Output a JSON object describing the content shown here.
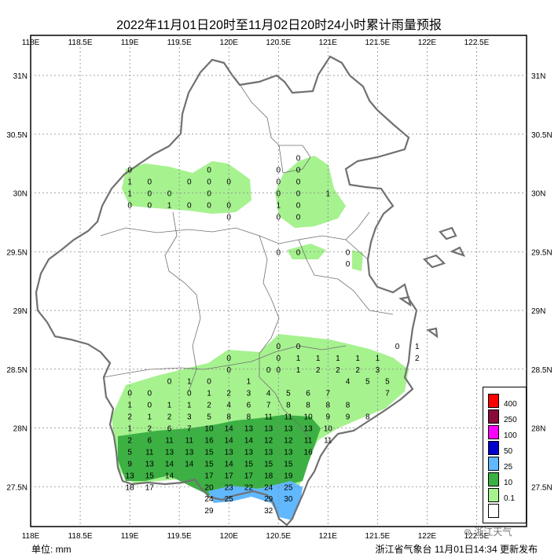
{
  "title": "2022年11月01日20时至11月02日20时24小时累计雨量预报",
  "lon_labels": [
    "118E",
    "118.5E",
    "119E",
    "119.5E",
    "120E",
    "120.5E",
    "121E",
    "121.5E",
    "122E",
    "122.5E"
  ],
  "lat_labels": [
    "31N",
    "30.5N",
    "30N",
    "29.5N",
    "29N",
    "28.5N",
    "28N",
    "27.5N"
  ],
  "legend": [
    {
      "label": "400",
      "color": "#ff0000"
    },
    {
      "label": "250",
      "color": "#8b0a3c"
    },
    {
      "label": "100",
      "color": "#ff00ff"
    },
    {
      "label": "50",
      "color": "#0000cc"
    },
    {
      "label": "25",
      "color": "#61b8ff"
    },
    {
      "label": "10",
      "color": "#3cb043"
    },
    {
      "label": "0.1",
      "color": "#a6f28f"
    },
    {
      "label": "",
      "color": "#ffffff"
    }
  ],
  "unit": "单位: mm",
  "footer": "浙江省气象台 11月01日14:34 更新发布",
  "watermark": "浙江天气",
  "values": [
    {
      "lon": 119.0,
      "lat": 30.2,
      "v": "0"
    },
    {
      "lon": 119.0,
      "lat": 30.1,
      "v": "1"
    },
    {
      "lon": 119.0,
      "lat": 30.0,
      "v": "1"
    },
    {
      "lon": 119.0,
      "lat": 29.9,
      "v": "0"
    },
    {
      "lon": 119.2,
      "lat": 30.1,
      "v": "0"
    },
    {
      "lon": 119.2,
      "lat": 30.0,
      "v": "0"
    },
    {
      "lon": 119.2,
      "lat": 29.9,
      "v": "0"
    },
    {
      "lon": 119.4,
      "lat": 30.0,
      "v": "0"
    },
    {
      "lon": 119.4,
      "lat": 29.9,
      "v": "1"
    },
    {
      "lon": 119.6,
      "lat": 30.1,
      "v": "0"
    },
    {
      "lon": 119.6,
      "lat": 29.9,
      "v": "0"
    },
    {
      "lon": 119.8,
      "lat": 30.2,
      "v": "0"
    },
    {
      "lon": 119.8,
      "lat": 30.1,
      "v": "0"
    },
    {
      "lon": 119.8,
      "lat": 30.0,
      "v": "0"
    },
    {
      "lon": 119.8,
      "lat": 29.9,
      "v": "0"
    },
    {
      "lon": 120.0,
      "lat": 30.1,
      "v": "0"
    },
    {
      "lon": 120.0,
      "lat": 29.9,
      "v": "0"
    },
    {
      "lon": 120.0,
      "lat": 29.8,
      "v": "0"
    },
    {
      "lon": 120.5,
      "lat": 30.2,
      "v": "0"
    },
    {
      "lon": 120.5,
      "lat": 30.1,
      "v": "0"
    },
    {
      "lon": 120.5,
      "lat": 30.0,
      "v": "0"
    },
    {
      "lon": 120.5,
      "lat": 29.9,
      "v": "1"
    },
    {
      "lon": 120.5,
      "lat": 29.8,
      "v": "0"
    },
    {
      "lon": 120.7,
      "lat": 30.3,
      "v": "0"
    },
    {
      "lon": 120.7,
      "lat": 30.2,
      "v": "0"
    },
    {
      "lon": 120.7,
      "lat": 30.1,
      "v": "0"
    },
    {
      "lon": 120.7,
      "lat": 30.0,
      "v": "0"
    },
    {
      "lon": 120.7,
      "lat": 29.9,
      "v": "0"
    },
    {
      "lon": 120.7,
      "lat": 29.8,
      "v": "0"
    },
    {
      "lon": 121.0,
      "lat": 30.0,
      "v": "1"
    },
    {
      "lon": 120.5,
      "lat": 29.5,
      "v": "0"
    },
    {
      "lon": 120.7,
      "lat": 29.5,
      "v": "0"
    },
    {
      "lon": 121.2,
      "lat": 29.5,
      "v": "0"
    },
    {
      "lon": 121.2,
      "lat": 29.4,
      "v": "0"
    },
    {
      "lon": 120.5,
      "lat": 28.7,
      "v": "0"
    },
    {
      "lon": 120.7,
      "lat": 28.7,
      "v": "0"
    },
    {
      "lon": 120.0,
      "lat": 28.6,
      "v": "0"
    },
    {
      "lon": 120.0,
      "lat": 28.5,
      "v": "0"
    },
    {
      "lon": 120.4,
      "lat": 28.5,
      "v": "0"
    },
    {
      "lon": 120.5,
      "lat": 28.6,
      "v": "0"
    },
    {
      "lon": 120.5,
      "lat": 28.5,
      "v": "0"
    },
    {
      "lon": 120.7,
      "lat": 28.6,
      "v": "1"
    },
    {
      "lon": 120.7,
      "lat": 28.5,
      "v": "1"
    },
    {
      "lon": 120.9,
      "lat": 28.6,
      "v": "1"
    },
    {
      "lon": 120.9,
      "lat": 28.5,
      "v": "2"
    },
    {
      "lon": 121.1,
      "lat": 28.6,
      "v": "1"
    },
    {
      "lon": 121.1,
      "lat": 28.5,
      "v": "2"
    },
    {
      "lon": 121.3,
      "lat": 28.6,
      "v": "1"
    },
    {
      "lon": 121.3,
      "lat": 28.5,
      "v": "2"
    },
    {
      "lon": 121.5,
      "lat": 28.6,
      "v": "1"
    },
    {
      "lon": 121.5,
      "lat": 28.5,
      "v": "3"
    },
    {
      "lon": 121.7,
      "lat": 28.7,
      "v": "0"
    },
    {
      "lon": 121.9,
      "lat": 28.7,
      "v": "1"
    },
    {
      "lon": 121.9,
      "lat": 28.6,
      "v": "2"
    },
    {
      "lon": 119.4,
      "lat": 28.4,
      "v": "0"
    },
    {
      "lon": 119.6,
      "lat": 28.4,
      "v": "1"
    },
    {
      "lon": 119.8,
      "lat": 28.4,
      "v": "0"
    },
    {
      "lon": 120.2,
      "lat": 28.4,
      "v": "1"
    },
    {
      "lon": 119.0,
      "lat": 28.3,
      "v": "0"
    },
    {
      "lon": 119.2,
      "lat": 28.3,
      "v": "0"
    },
    {
      "lon": 119.6,
      "lat": 28.3,
      "v": "0"
    },
    {
      "lon": 119.8,
      "lat": 28.3,
      "v": "1"
    },
    {
      "lon": 120.0,
      "lat": 28.3,
      "v": "2"
    },
    {
      "lon": 120.2,
      "lat": 28.3,
      "v": "3"
    },
    {
      "lon": 120.4,
      "lat": 28.3,
      "v": "4"
    },
    {
      "lon": 120.6,
      "lat": 28.3,
      "v": "5"
    },
    {
      "lon": 120.8,
      "lat": 28.3,
      "v": "6"
    },
    {
      "lon": 121.0,
      "lat": 28.3,
      "v": "7"
    },
    {
      "lon": 121.2,
      "lat": 28.4,
      "v": "4"
    },
    {
      "lon": 121.4,
      "lat": 28.4,
      "v": "5"
    },
    {
      "lon": 121.6,
      "lat": 28.4,
      "v": "5"
    },
    {
      "lon": 121.6,
      "lat": 28.3,
      "v": "7"
    },
    {
      "lon": 119.0,
      "lat": 28.2,
      "v": "1"
    },
    {
      "lon": 119.2,
      "lat": 28.2,
      "v": "0"
    },
    {
      "lon": 119.4,
      "lat": 28.2,
      "v": "1"
    },
    {
      "lon": 119.6,
      "lat": 28.2,
      "v": "1"
    },
    {
      "lon": 119.8,
      "lat": 28.2,
      "v": "2"
    },
    {
      "lon": 120.0,
      "lat": 28.2,
      "v": "4"
    },
    {
      "lon": 120.2,
      "lat": 28.2,
      "v": "6"
    },
    {
      "lon": 120.4,
      "lat": 28.2,
      "v": "7"
    },
    {
      "lon": 120.6,
      "lat": 28.2,
      "v": "8"
    },
    {
      "lon": 120.8,
      "lat": 28.2,
      "v": "8"
    },
    {
      "lon": 121.0,
      "lat": 28.2,
      "v": "8"
    },
    {
      "lon": 121.2,
      "lat": 28.2,
      "v": "8"
    },
    {
      "lon": 119.0,
      "lat": 28.1,
      "v": "2"
    },
    {
      "lon": 119.2,
      "lat": 28.1,
      "v": "1"
    },
    {
      "lon": 119.4,
      "lat": 28.1,
      "v": "2"
    },
    {
      "lon": 119.6,
      "lat": 28.1,
      "v": "3"
    },
    {
      "lon": 119.8,
      "lat": 28.1,
      "v": "5"
    },
    {
      "lon": 120.0,
      "lat": 28.1,
      "v": "8"
    },
    {
      "lon": 120.2,
      "lat": 28.1,
      "v": "8"
    },
    {
      "lon": 120.4,
      "lat": 28.1,
      "v": "11"
    },
    {
      "lon": 120.6,
      "lat": 28.1,
      "v": "11"
    },
    {
      "lon": 120.8,
      "lat": 28.1,
      "v": "10"
    },
    {
      "lon": 121.0,
      "lat": 28.1,
      "v": "9"
    },
    {
      "lon": 121.2,
      "lat": 28.1,
      "v": "9"
    },
    {
      "lon": 121.4,
      "lat": 28.1,
      "v": "8"
    },
    {
      "lon": 119.0,
      "lat": 28.0,
      "v": "1"
    },
    {
      "lon": 119.2,
      "lat": 28.0,
      "v": "2"
    },
    {
      "lon": 119.4,
      "lat": 28.0,
      "v": "6"
    },
    {
      "lon": 119.6,
      "lat": 28.0,
      "v": "7"
    },
    {
      "lon": 119.8,
      "lat": 28.0,
      "v": "10"
    },
    {
      "lon": 120.0,
      "lat": 28.0,
      "v": "14"
    },
    {
      "lon": 120.2,
      "lat": 28.0,
      "v": "13"
    },
    {
      "lon": 120.4,
      "lat": 28.0,
      "v": "13"
    },
    {
      "lon": 120.6,
      "lat": 28.0,
      "v": "13"
    },
    {
      "lon": 120.8,
      "lat": 28.0,
      "v": "13"
    },
    {
      "lon": 121.0,
      "lat": 28.0,
      "v": "10"
    },
    {
      "lon": 119.0,
      "lat": 27.9,
      "v": "2"
    },
    {
      "lon": 119.2,
      "lat": 27.9,
      "v": "6"
    },
    {
      "lon": 119.4,
      "lat": 27.9,
      "v": "11"
    },
    {
      "lon": 119.6,
      "lat": 27.9,
      "v": "11"
    },
    {
      "lon": 119.8,
      "lat": 27.9,
      "v": "16"
    },
    {
      "lon": 120.0,
      "lat": 27.9,
      "v": "14"
    },
    {
      "lon": 120.2,
      "lat": 27.9,
      "v": "14"
    },
    {
      "lon": 120.4,
      "lat": 27.9,
      "v": "12"
    },
    {
      "lon": 120.6,
      "lat": 27.9,
      "v": "12"
    },
    {
      "lon": 120.8,
      "lat": 27.9,
      "v": "11"
    },
    {
      "lon": 121.0,
      "lat": 27.9,
      "v": "11"
    },
    {
      "lon": 119.0,
      "lat": 27.8,
      "v": "5"
    },
    {
      "lon": 119.2,
      "lat": 27.8,
      "v": "11"
    },
    {
      "lon": 119.4,
      "lat": 27.8,
      "v": "13"
    },
    {
      "lon": 119.6,
      "lat": 27.8,
      "v": "13"
    },
    {
      "lon": 119.8,
      "lat": 27.8,
      "v": "15"
    },
    {
      "lon": 120.0,
      "lat": 27.8,
      "v": "13"
    },
    {
      "lon": 120.2,
      "lat": 27.8,
      "v": "13"
    },
    {
      "lon": 120.4,
      "lat": 27.8,
      "v": "13"
    },
    {
      "lon": 120.6,
      "lat": 27.8,
      "v": "13"
    },
    {
      "lon": 120.8,
      "lat": 27.8,
      "v": "16"
    },
    {
      "lon": 119.0,
      "lat": 27.7,
      "v": "9"
    },
    {
      "lon": 119.2,
      "lat": 27.7,
      "v": "13"
    },
    {
      "lon": 119.4,
      "lat": 27.7,
      "v": "14"
    },
    {
      "lon": 119.6,
      "lat": 27.7,
      "v": "14"
    },
    {
      "lon": 119.8,
      "lat": 27.7,
      "v": "15"
    },
    {
      "lon": 120.0,
      "lat": 27.7,
      "v": "14"
    },
    {
      "lon": 120.2,
      "lat": 27.7,
      "v": "15"
    },
    {
      "lon": 120.4,
      "lat": 27.7,
      "v": "15"
    },
    {
      "lon": 120.6,
      "lat": 27.7,
      "v": "15"
    },
    {
      "lon": 119.0,
      "lat": 27.6,
      "v": "13"
    },
    {
      "lon": 119.2,
      "lat": 27.6,
      "v": "15"
    },
    {
      "lon": 119.4,
      "lat": 27.6,
      "v": "14"
    },
    {
      "lon": 119.8,
      "lat": 27.6,
      "v": "17"
    },
    {
      "lon": 120.0,
      "lat": 27.6,
      "v": "17"
    },
    {
      "lon": 120.2,
      "lat": 27.6,
      "v": "17"
    },
    {
      "lon": 120.4,
      "lat": 27.6,
      "v": "18"
    },
    {
      "lon": 120.6,
      "lat": 27.6,
      "v": "19"
    },
    {
      "lon": 119.0,
      "lat": 27.5,
      "v": "18"
    },
    {
      "lon": 119.2,
      "lat": 27.5,
      "v": "17"
    },
    {
      "lon": 119.8,
      "lat": 27.5,
      "v": "20"
    },
    {
      "lon": 120.0,
      "lat": 27.5,
      "v": "23"
    },
    {
      "lon": 120.2,
      "lat": 27.5,
      "v": "22"
    },
    {
      "lon": 120.4,
      "lat": 27.5,
      "v": "24"
    },
    {
      "lon": 120.6,
      "lat": 27.5,
      "v": "25"
    },
    {
      "lon": 119.8,
      "lat": 27.4,
      "v": "24"
    },
    {
      "lon": 120.0,
      "lat": 27.4,
      "v": "25"
    },
    {
      "lon": 120.4,
      "lat": 27.4,
      "v": "29"
    },
    {
      "lon": 120.6,
      "lat": 27.4,
      "v": "30"
    },
    {
      "lon": 119.8,
      "lat": 27.3,
      "v": "29"
    },
    {
      "lon": 120.4,
      "lat": 27.3,
      "v": "32"
    }
  ]
}
